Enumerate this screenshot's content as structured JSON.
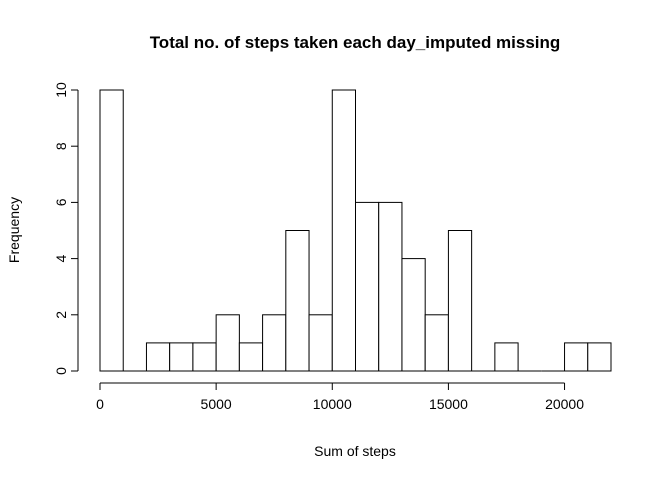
{
  "chart_data": {
    "type": "bar",
    "title": "Total no. of steps taken each day_imputed missing",
    "xlabel": "Sum of steps",
    "ylabel": "Frequency",
    "bin_width": 1000,
    "bins": [
      {
        "x0": 0,
        "x1": 1000,
        "count": 10
      },
      {
        "x0": 1000,
        "x1": 2000,
        "count": 0
      },
      {
        "x0": 2000,
        "x1": 3000,
        "count": 1
      },
      {
        "x0": 3000,
        "x1": 4000,
        "count": 1
      },
      {
        "x0": 4000,
        "x1": 5000,
        "count": 1
      },
      {
        "x0": 5000,
        "x1": 6000,
        "count": 2
      },
      {
        "x0": 6000,
        "x1": 7000,
        "count": 1
      },
      {
        "x0": 7000,
        "x1": 8000,
        "count": 2
      },
      {
        "x0": 8000,
        "x1": 9000,
        "count": 5
      },
      {
        "x0": 9000,
        "x1": 10000,
        "count": 2
      },
      {
        "x0": 10000,
        "x1": 11000,
        "count": 10
      },
      {
        "x0": 11000,
        "x1": 12000,
        "count": 6
      },
      {
        "x0": 12000,
        "x1": 13000,
        "count": 6
      },
      {
        "x0": 13000,
        "x1": 14000,
        "count": 4
      },
      {
        "x0": 14000,
        "x1": 15000,
        "count": 2
      },
      {
        "x0": 15000,
        "x1": 16000,
        "count": 5
      },
      {
        "x0": 16000,
        "x1": 17000,
        "count": 0
      },
      {
        "x0": 17000,
        "x1": 18000,
        "count": 1
      },
      {
        "x0": 18000,
        "x1": 19000,
        "count": 0
      },
      {
        "x0": 19000,
        "x1": 20000,
        "count": 0
      },
      {
        "x0": 20000,
        "x1": 21000,
        "count": 1
      },
      {
        "x0": 21000,
        "x1": 22000,
        "count": 1
      }
    ],
    "xlim": [
      0,
      22000
    ],
    "ylim": [
      0,
      10
    ],
    "xticks": [
      0,
      5000,
      10000,
      15000,
      20000
    ],
    "yticks": [
      0,
      2,
      4,
      6,
      8,
      10
    ],
    "grid": false,
    "bar_fill": "#ffffff",
    "bar_stroke": "#000000"
  }
}
